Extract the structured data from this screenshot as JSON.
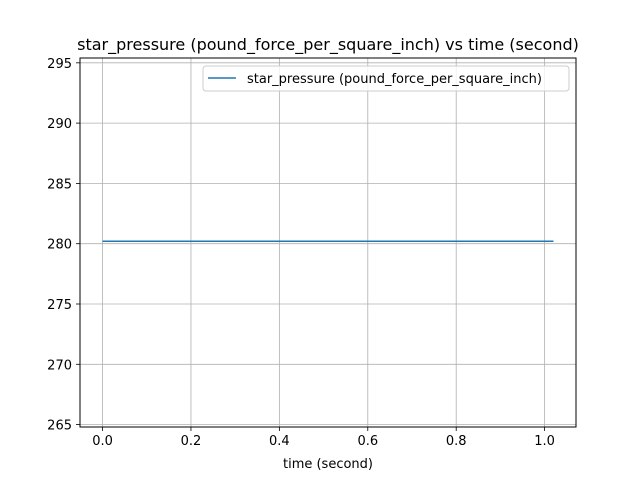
{
  "chart_data": {
    "type": "line",
    "title": "star_pressure (pound_force_per_square_inch) vs time (second)",
    "xlabel": "time (second)",
    "ylabel": "",
    "xlim": [
      -0.051,
      1.071
    ],
    "ylim": [
      264.8,
      295.4
    ],
    "xticks": [
      0.0,
      0.2,
      0.4,
      0.6,
      0.8,
      1.0
    ],
    "xtick_labels": [
      "0.0",
      "0.2",
      "0.4",
      "0.6",
      "0.8",
      "1.0"
    ],
    "yticks": [
      265,
      270,
      275,
      280,
      285,
      290,
      295
    ],
    "ytick_labels": [
      "265",
      "270",
      "275",
      "280",
      "285",
      "290",
      "295"
    ],
    "grid": true,
    "legend_position": "top-right",
    "series": [
      {
        "name": "star_pressure (pound_force_per_square_inch)",
        "color": "#1f77b4",
        "x": [
          0.0,
          1.02
        ],
        "y": [
          280.2,
          280.2
        ]
      }
    ]
  }
}
